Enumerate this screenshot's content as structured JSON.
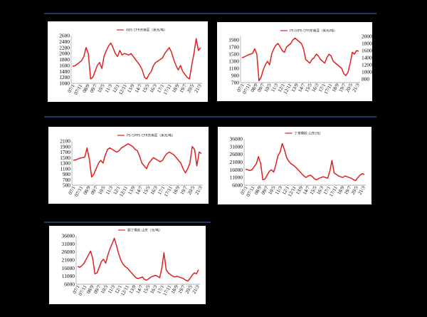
{
  "chart_data": [
    {
      "type": "line",
      "title": "ABS CFR东南亚（美元/吨）",
      "ylim": [
        1000,
        2600
      ],
      "yticks": [
        1000,
        1200,
        1400,
        1600,
        1800,
        2000,
        2200,
        2400,
        2600
      ],
      "xticks": [
        "07/1",
        "07/11",
        "08/9",
        "09/7",
        "10/5",
        "11/3",
        "12/1",
        "12/11",
        "13/9",
        "14/7",
        "15/5",
        "16/3",
        "17/1",
        "17/11",
        "18/9",
        "19/7",
        "20/5",
        "21/3"
      ],
      "series": [
        {
          "values": [
            1570,
            1590,
            1640,
            1700,
            1760,
            1900,
            2200,
            2000,
            1150,
            1200,
            1400,
            1600,
            1700,
            1500,
            1900,
            2100,
            2250,
            2350,
            2200,
            2000,
            1900,
            2100,
            1950,
            2000,
            1980,
            1950,
            2000,
            1900,
            1800,
            1700,
            1600,
            1450,
            1200,
            1150,
            1300,
            1400,
            1600,
            1700,
            1750,
            1800,
            1850,
            2000,
            2100,
            2200,
            2050,
            1800,
            1600,
            1450,
            1600,
            1400,
            1300,
            1200,
            1150,
            1600,
            2000,
            2500,
            2100,
            2200
          ]
        }
      ]
    },
    {
      "type": "line",
      "title": "PS HIPS CFR东南亚（美元/吨）",
      "ylim": [
        700,
        2000
      ],
      "yticks": [
        700,
        900,
        1100,
        1300,
        1500,
        1700,
        1900
      ],
      "yticks_right": [
        800,
        1000,
        1200,
        1400,
        1600,
        1800,
        2000
      ],
      "xticks": [
        "07/1",
        "07/11",
        "08/9",
        "09/7",
        "10/5",
        "11/3",
        "12/1",
        "12/11",
        "13/9",
        "14/7",
        "15/5",
        "16/3",
        "17/1",
        "17/11",
        "18/9",
        "19/7",
        "20/5",
        "21/3"
      ],
      "series": [
        {
          "values": [
            1400,
            1420,
            1450,
            1480,
            1500,
            1520,
            1650,
            1500,
            750,
            850,
            1050,
            1200,
            1300,
            1200,
            1500,
            1650,
            1750,
            1800,
            1700,
            1600,
            1550,
            1700,
            1750,
            1800,
            1900,
            1950,
            1900,
            1850,
            1800,
            1650,
            1350,
            1300,
            1250,
            1350,
            1400,
            1500,
            1450,
            1350,
            1300,
            1250,
            1400,
            1500,
            1450,
            1300,
            1250,
            1200,
            1150,
            1100,
            950,
            900,
            1000,
            1250,
            1550,
            1500,
            1600,
            1580
          ]
        }
      ]
    },
    {
      "type": "line",
      "title": "PS GPPS CFR东南亚（美元/吨）",
      "ylim": [
        500,
        2100
      ],
      "yticks": [
        500,
        700,
        900,
        1100,
        1300,
        1500,
        1700,
        1900,
        2100
      ],
      "xticks": [
        "07/1",
        "07/11",
        "08/9",
        "09/7",
        "10/5",
        "11/3",
        "12/1",
        "12/11",
        "13/9",
        "14/7",
        "15/5",
        "16/3",
        "17/1",
        "17/11",
        "18/9",
        "19/7",
        "20/5",
        "21/3"
      ],
      "series": [
        {
          "values": [
            1400,
            1420,
            1450,
            1480,
            1500,
            1520,
            1850,
            1450,
            800,
            900,
            1100,
            1300,
            1400,
            1300,
            1600,
            1800,
            1850,
            1800,
            1750,
            1700,
            1750,
            1850,
            1900,
            1950,
            2000,
            1950,
            1900,
            1800,
            1750,
            1550,
            1300,
            1200,
            1100,
            1300,
            1400,
            1500,
            1450,
            1400,
            1350,
            1400,
            1550,
            1650,
            1700,
            1650,
            1600,
            1500,
            1400,
            1300,
            1100,
            950,
            1100,
            1300,
            1900,
            1800,
            1200,
            1700,
            1650
          ]
        }
      ]
    },
    {
      "type": "line",
      "title": "丁苯橡胶 山东(元)",
      "ylim": [
        6000,
        36000
      ],
      "yticks": [
        6000,
        11000,
        16000,
        21000,
        26000,
        31000,
        36000
      ],
      "xticks": [
        "07/1",
        "07/11",
        "08/9",
        "09/7",
        "10/5",
        "11/3",
        "12/1",
        "12/11",
        "13/9",
        "14/7",
        "15/5",
        "16/3",
        "17/1",
        "17/11",
        "18/9",
        "19/7",
        "20/5",
        "21/3"
      ],
      "series": [
        {
          "values": [
            16500,
            16000,
            15500,
            16000,
            18000,
            20000,
            24500,
            20000,
            9500,
            10000,
            12500,
            15000,
            16000,
            14500,
            19000,
            25000,
            27500,
            33000,
            29000,
            24000,
            21500,
            20000,
            19000,
            18000,
            16500,
            15000,
            13500,
            12000,
            11000,
            12000,
            12500,
            11500,
            10000,
            9500,
            10500,
            11000,
            11500,
            11000,
            10500,
            15000,
            22000,
            14000,
            13000,
            12000,
            11500,
            11000,
            12000,
            11500,
            11000,
            10500,
            9500,
            9000,
            11000,
            12500,
            13500,
            13000
          ]
        }
      ]
    },
    {
      "type": "line",
      "title": "顺丁橡胶 山东（元/吨）",
      "ylim": [
        6000,
        36000
      ],
      "yticks": [
        6000,
        11000,
        16000,
        21000,
        26000,
        31000,
        36000
      ],
      "xticks": [
        "07/1",
        "07/11",
        "08/9",
        "09/7",
        "10/5",
        "11/3",
        "12/1",
        "12/11",
        "13/9",
        "14/7",
        "15/5",
        "16/3",
        "17/1",
        "17/11",
        "18/9",
        "19/7",
        "20/5",
        "21/3"
      ],
      "series": [
        {
          "values": [
            17000,
            16500,
            17500,
            19000,
            21500,
            24000,
            26500,
            22000,
            12500,
            13000,
            16500,
            20000,
            21500,
            19000,
            24000,
            28000,
            31000,
            34500,
            30000,
            25000,
            21000,
            18500,
            17000,
            16000,
            14500,
            13000,
            11500,
            10000,
            9500,
            10000,
            10500,
            9000,
            8500,
            9500,
            10500,
            11000,
            11500,
            11000,
            10000,
            16000,
            25500,
            15000,
            13000,
            12000,
            11000,
            10500,
            11000,
            10500,
            10000,
            9500,
            8500,
            8000,
            9500,
            11500,
            13000,
            12500,
            15000
          ]
        }
      ]
    }
  ]
}
